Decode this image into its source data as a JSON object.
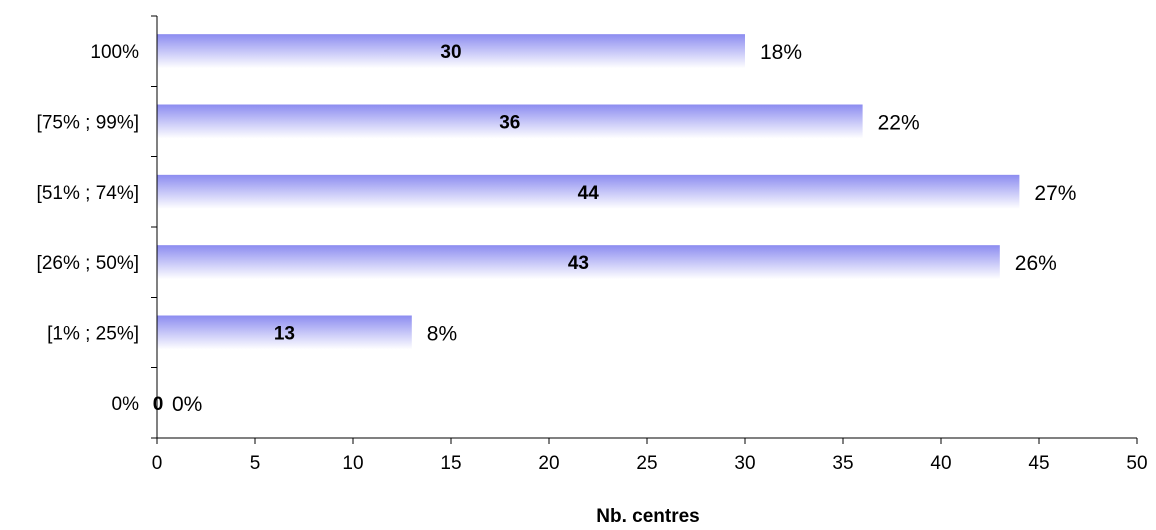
{
  "chart_data": {
    "type": "bar",
    "orientation": "horizontal",
    "title": "",
    "xlabel": "Nb. centres",
    "ylabel": "",
    "xlim": [
      0,
      50
    ],
    "x_ticks": [
      0,
      5,
      10,
      15,
      20,
      25,
      30,
      35,
      40,
      45,
      50
    ],
    "grid": false,
    "legend": "none",
    "categories": [
      "100%",
      "[75% ; 99%]",
      "[51% ; 74%]",
      "[26% ; 50%]",
      "[1% ; 25%]",
      "0%"
    ],
    "values": [
      30,
      36,
      44,
      43,
      13,
      0
    ],
    "value_labels": [
      "30",
      "36",
      "44",
      "43",
      "13",
      "0"
    ],
    "percent_labels": [
      "18%",
      "22%",
      "27%",
      "26%",
      "8%",
      "0%"
    ],
    "colors": {
      "bar_top": "#8c8cf0",
      "bar_bottom": "#ffffff"
    }
  }
}
